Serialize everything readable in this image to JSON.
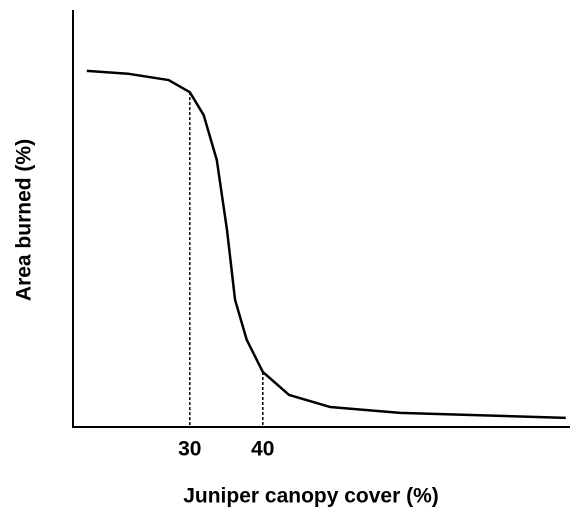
{
  "chart_data": {
    "type": "line",
    "x_label": "Juniper canopy cover (%)",
    "y_label": "Area burned (%)",
    "series": [
      {
        "name": "Area burned",
        "color": "#000000",
        "x": [
          15.9,
          21.6,
          27.1,
          30,
          31.9,
          33.7,
          35.1,
          36.2,
          37.8,
          40,
          43.6,
          49.2,
          58.8,
          81.5
        ],
        "values": [
          85.4,
          84.7,
          83.2,
          80.3,
          74.8,
          64.0,
          47.2,
          30.5,
          20.9,
          13.2,
          7.7,
          4.8,
          3.4,
          2.2
        ]
      }
    ],
    "xlim": [
      14,
      82
    ],
    "ylim": [
      0,
      100
    ],
    "xticks": [
      30,
      40
    ],
    "yticks": [],
    "grid": false
  }
}
